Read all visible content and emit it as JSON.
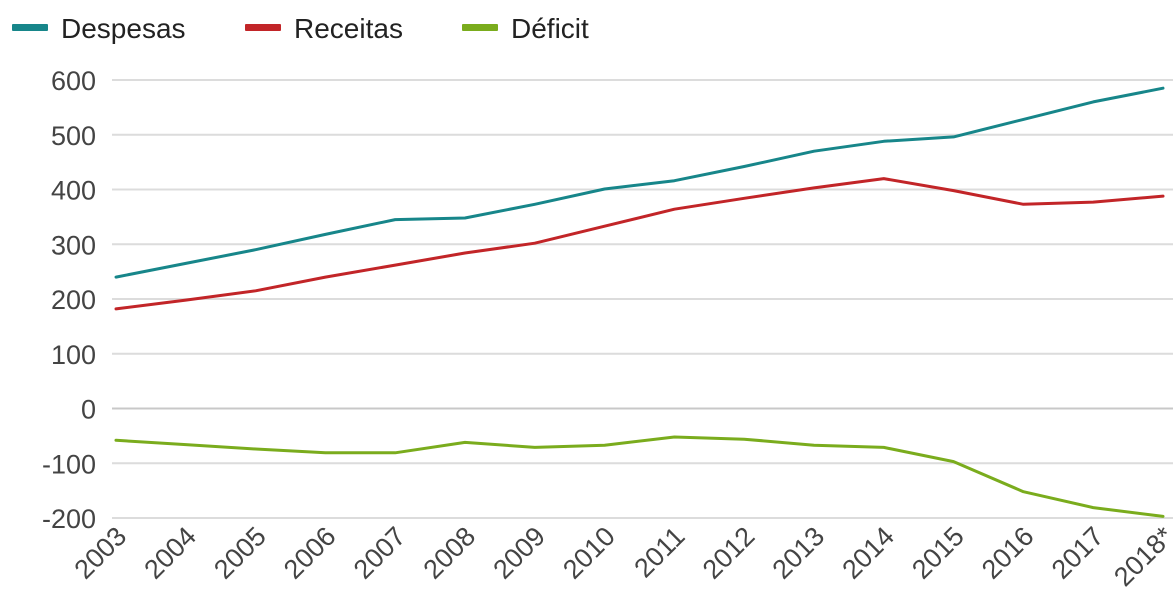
{
  "chart_data": {
    "type": "line",
    "title": "",
    "xlabel": "",
    "ylabel": "",
    "categories": [
      "2003",
      "2004",
      "2005",
      "2006",
      "2007",
      "2008",
      "2009",
      "2010",
      "2011",
      "2012",
      "2013",
      "2014",
      "2015",
      "2016",
      "2017",
      "2018*"
    ],
    "yticks": [
      "600",
      "500",
      "400",
      "300",
      "200",
      "100",
      "0",
      "-100",
      "-200"
    ],
    "ylim": [
      -200,
      600
    ],
    "grid": true,
    "legend_position": "top-left",
    "series": [
      {
        "name": "Despesas",
        "color": "#17868a",
        "values": [
          240,
          265,
          290,
          318,
          345,
          348,
          373,
          401,
          416,
          442,
          470,
          488,
          496,
          528,
          560,
          585
        ]
      },
      {
        "name": "Receitas",
        "color": "#c22528",
        "values": [
          182,
          198,
          215,
          240,
          262,
          284,
          302,
          333,
          364,
          384,
          403,
          420,
          398,
          373,
          377,
          388
        ]
      },
      {
        "name": "Déficit",
        "color": "#7aac1d",
        "values": [
          -58,
          -66,
          -74,
          -81,
          -81,
          -62,
          -71,
          -67,
          -52,
          -56,
          -67,
          -71,
          -97,
          -152,
          -181,
          -197
        ]
      }
    ]
  }
}
